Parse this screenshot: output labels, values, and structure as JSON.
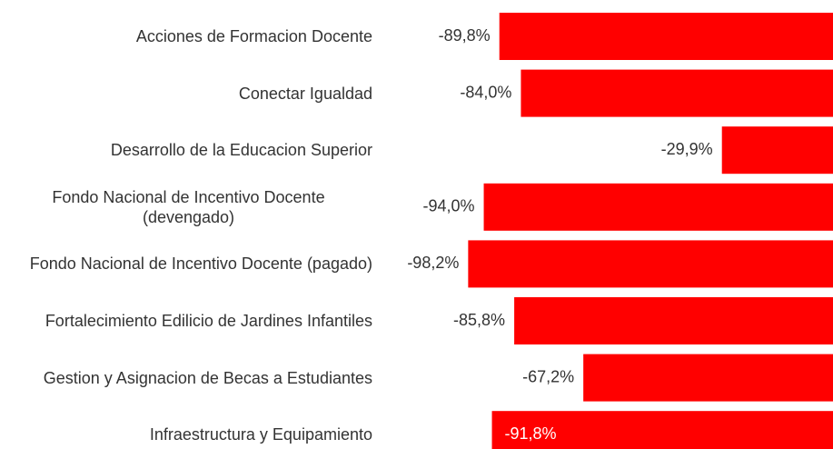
{
  "chart_data": {
    "type": "bar",
    "orientation": "horizontal",
    "categories": [
      "Acciones de Formacion Docente",
      "Conectar Igualdad",
      "Desarrollo de la Educacion Superior",
      "Fondo Nacional de Incentivo Docente (devengado)",
      "Fondo Nacional de Incentivo Docente (pagado)",
      "Fortalecimiento Edilicio de Jardines Infantiles",
      "Gestion y Asignacion de Becas a Estudiantes",
      "Infraestructura y Equipamiento"
    ],
    "values": [
      -89.8,
      -84.0,
      -29.9,
      -94.0,
      -98.2,
      -85.8,
      -67.2,
      -91.8
    ],
    "value_labels": [
      "-89,8%",
      "-84,0%",
      "-29,9%",
      "-94,0%",
      "-98,2%",
      "-85,8%",
      "-67,2%",
      "-91,8%"
    ],
    "color": "#ff0000",
    "xlim": [
      -100,
      0
    ]
  }
}
